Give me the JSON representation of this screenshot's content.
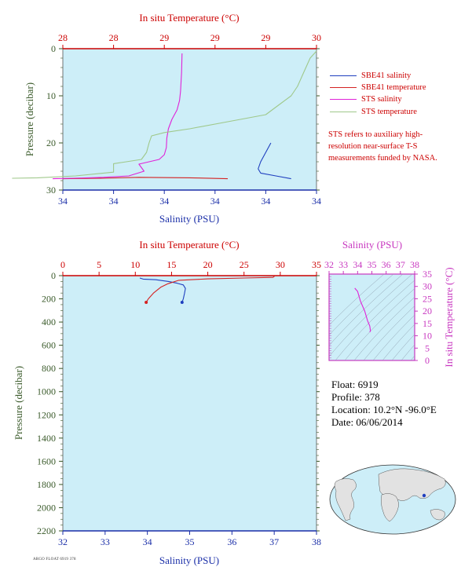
{
  "colors": {
    "plot_bg": "#cdeef8",
    "salinity": "#1f3fbf",
    "temperature": "#d42222",
    "sts_salinity": "#e022d8",
    "sts_temperature": "#9fc88a",
    "pressure_axis": "#3a5a2a",
    "axis_blue": "#1b2fa8",
    "axis_red": "#cc0000",
    "ts_axis": "#c838c0",
    "ts_contour": "#8fa0b0"
  },
  "legend": [
    {
      "label": "SBE41 salinity",
      "color_key": "salinity"
    },
    {
      "label": "SBE41 temperature",
      "color_key": "temperature"
    },
    {
      "label": "STS salinity",
      "color_key": "sts_salinity"
    },
    {
      "label": "STS temperature",
      "color_key": "sts_temperature"
    }
  ],
  "note": "STS refers to auxiliary high-resolution near-surface T-S measurements funded by NASA.",
  "float_info": {
    "float": "Float:  6919",
    "profile": "Profile:  378",
    "location": "Location:  10.2°N  -96.0°E",
    "date": "Date:  06/06/2014"
  },
  "footer_text": "ARGO FLOAT 6919 378",
  "chart_data": [
    {
      "type": "line",
      "title": "",
      "top_axis_label": "In situ Temperature (°C)",
      "top_ticks": [
        "28",
        "28",
        "29",
        "29",
        "29",
        "30"
      ],
      "bottom_axis_label": "Salinity (PSU)",
      "bottom_ticks": [
        "34",
        "34",
        "34",
        "34",
        "34",
        "34"
      ],
      "ylabel": "Pressure (decibar)",
      "ylim": [
        0,
        30
      ],
      "y_ticks": [
        "0",
        "10",
        "20",
        "30"
      ],
      "salinity_range": [
        33.8,
        34.3
      ],
      "temperature_range": [
        28.0,
        30.0
      ],
      "series": [
        {
          "name": "SBE41 salinity",
          "axis": "salinity",
          "points": [
            [
              34.21,
              20.0
            ],
            [
              34.2,
              22.0
            ],
            [
              34.19,
              24.0
            ],
            [
              34.185,
              25.5
            ],
            [
              34.19,
              26.4
            ],
            [
              34.22,
              27.0
            ],
            [
              34.25,
              27.6
            ]
          ]
        },
        {
          "name": "SBE41 temperature",
          "axis": "temperature",
          "points": [
            [
              29.3,
              27.6
            ],
            [
              29.0,
              27.4
            ],
            [
              28.6,
              27.3
            ],
            [
              28.3,
              27.5
            ],
            [
              28.0,
              27.6
            ]
          ]
        },
        {
          "name": "STS salinity",
          "axis": "salinity",
          "points": [
            [
              34.035,
              1.0
            ],
            [
              34.034,
              5.0
            ],
            [
              34.032,
              9.0
            ],
            [
              34.03,
              11.0
            ],
            [
              34.025,
              13.0
            ],
            [
              34.015,
              15.0
            ],
            [
              34.008,
              17.0
            ],
            [
              34.005,
              19.0
            ],
            [
              34.004,
              21.0
            ],
            [
              34.0,
              22.5
            ],
            [
              33.99,
              23.5
            ],
            [
              33.97,
              24.0
            ],
            [
              33.95,
              24.5
            ],
            [
              33.96,
              26.0
            ],
            [
              33.93,
              27.0
            ],
            [
              33.88,
              27.3
            ],
            [
              33.82,
              27.5
            ],
            [
              33.78,
              27.6
            ]
          ]
        },
        {
          "name": "STS temperature",
          "axis": "temperature",
          "points": [
            [
              30.0,
              0.5
            ],
            [
              29.95,
              2.0
            ],
            [
              29.9,
              5.0
            ],
            [
              29.85,
              8.0
            ],
            [
              29.8,
              10.0
            ],
            [
              29.7,
              12.0
            ],
            [
              29.6,
              14.0
            ],
            [
              29.3,
              15.5
            ],
            [
              29.0,
              17.0
            ],
            [
              28.8,
              17.8
            ],
            [
              28.7,
              18.5
            ],
            [
              28.68,
              20.0
            ],
            [
              28.66,
              22.0
            ],
            [
              28.62,
              23.5
            ],
            [
              28.5,
              24.0
            ],
            [
              28.4,
              24.4
            ],
            [
              28.4,
              25.5
            ],
            [
              28.4,
              26.2
            ],
            [
              28.1,
              27.0
            ],
            [
              27.8,
              27.4
            ],
            [
              27.6,
              27.5
            ]
          ]
        }
      ]
    },
    {
      "type": "line",
      "title": "",
      "top_axis_label": "In situ Temperature (°C)",
      "top_ticks": [
        "0",
        "5",
        "10",
        "15",
        "20",
        "25",
        "30",
        "35"
      ],
      "bottom_axis_label": "Salinity (PSU)",
      "bottom_ticks": [
        "32",
        "33",
        "34",
        "35",
        "36",
        "37",
        "38"
      ],
      "ylabel": "Pressure (decibar)",
      "ylim": [
        0,
        2200
      ],
      "y_ticks": [
        "0",
        "200",
        "400",
        "600",
        "800",
        "1000",
        "1200",
        "1400",
        "1600",
        "1800",
        "2000",
        "2200"
      ],
      "salinity_range": [
        32,
        38
      ],
      "temperature_range": [
        0,
        35
      ],
      "series": [
        {
          "name": "SBE41 salinity",
          "axis": "salinity",
          "points": [
            [
              33.82,
              20
            ],
            [
              33.9,
              30
            ],
            [
              34.2,
              35
            ],
            [
              34.5,
              50
            ],
            [
              34.7,
              65
            ],
            [
              34.85,
              80
            ],
            [
              34.9,
              110
            ],
            [
              34.88,
              150
            ],
            [
              34.85,
              200
            ],
            [
              34.82,
              230
            ]
          ]
        },
        {
          "name": "SBE41 temperature",
          "axis": "temperature",
          "points": [
            [
              29.3,
              0
            ],
            [
              29.0,
              15
            ],
            [
              25.0,
              20
            ],
            [
              20.0,
              28
            ],
            [
              16.0,
              40
            ],
            [
              14.5,
              70
            ],
            [
              13.5,
              100
            ],
            [
              12.5,
              150
            ],
            [
              11.8,
              200
            ],
            [
              11.5,
              230
            ]
          ]
        }
      ]
    },
    {
      "type": "line",
      "title": "",
      "top_axis_label": "Salinity (PSU)",
      "top_ticks": [
        "32",
        "33",
        "34",
        "35",
        "36",
        "37",
        "38"
      ],
      "right_axis_label": "In situ Temperature (°C)",
      "right_ticks": [
        "0",
        "5",
        "10",
        "15",
        "20",
        "25",
        "30",
        "35"
      ],
      "salinity_range": [
        32,
        38
      ],
      "temperature_range": [
        0,
        35
      ],
      "series": [
        {
          "name": "T-S",
          "points": [
            [
              33.8,
              29.3
            ],
            [
              34.0,
              28.0
            ],
            [
              34.2,
              24.0
            ],
            [
              34.5,
              20.0
            ],
            [
              34.7,
              16.0
            ],
            [
              34.85,
              14.0
            ],
            [
              34.9,
              12.0
            ],
            [
              34.85,
              11.5
            ]
          ]
        }
      ]
    }
  ]
}
